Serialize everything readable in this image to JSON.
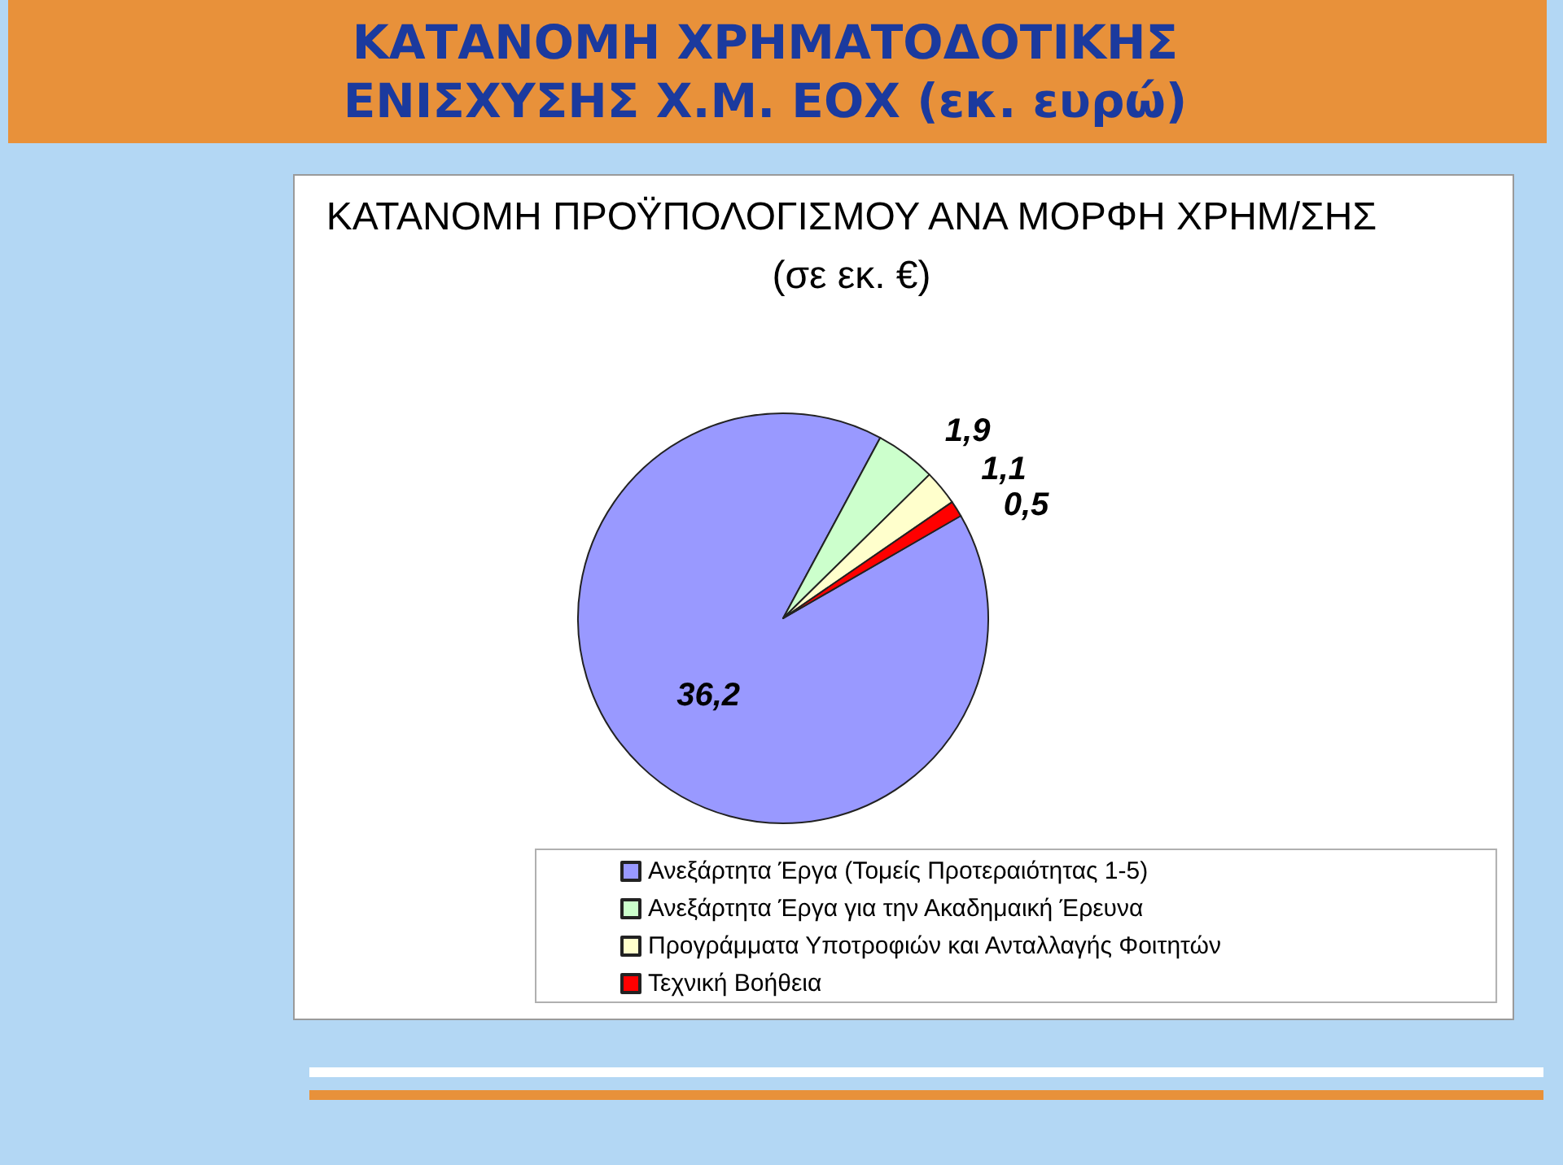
{
  "chart_data": {
    "type": "pie",
    "title": "ΚΑΤΑΝΟΜΗ ΧΡΗΜΑΤΟΔΟΤΙΚΗΣ ΕΝΙΣΧΥΣΗΣ Χ.Μ. ΕΟΧ (εκ. ευρώ)",
    "subtitle": "ΚΑΤΑΝΟΜΗ ΠΡΟΫΠΟΛΟΓΙΣΜΟΥ ΑΝΑ ΜΟΡΦΗ ΧΡΗΜ/ΣΗΣ (σε εκ. €)",
    "categories": [
      "Ανεξάρτητα Έργα (Τομείς Προτεραιότητας 1-5)",
      "Ανεξάρτητα Έργα για την Ακαδημαική Έρευνα",
      "Προγράμματα Υποτροφιών και Ανταλλαγής Φοιτητών",
      "Τεχνική Βοήθεια"
    ],
    "values": [
      36.2,
      1.9,
      1.1,
      0.5
    ],
    "colors": [
      "#9999ff",
      "#ccffcc",
      "#ffffcc",
      "#ff0000"
    ],
    "value_labels": [
      "36,2",
      "1,9",
      "1,1",
      "0,5"
    ],
    "legend": "bottom"
  }
}
